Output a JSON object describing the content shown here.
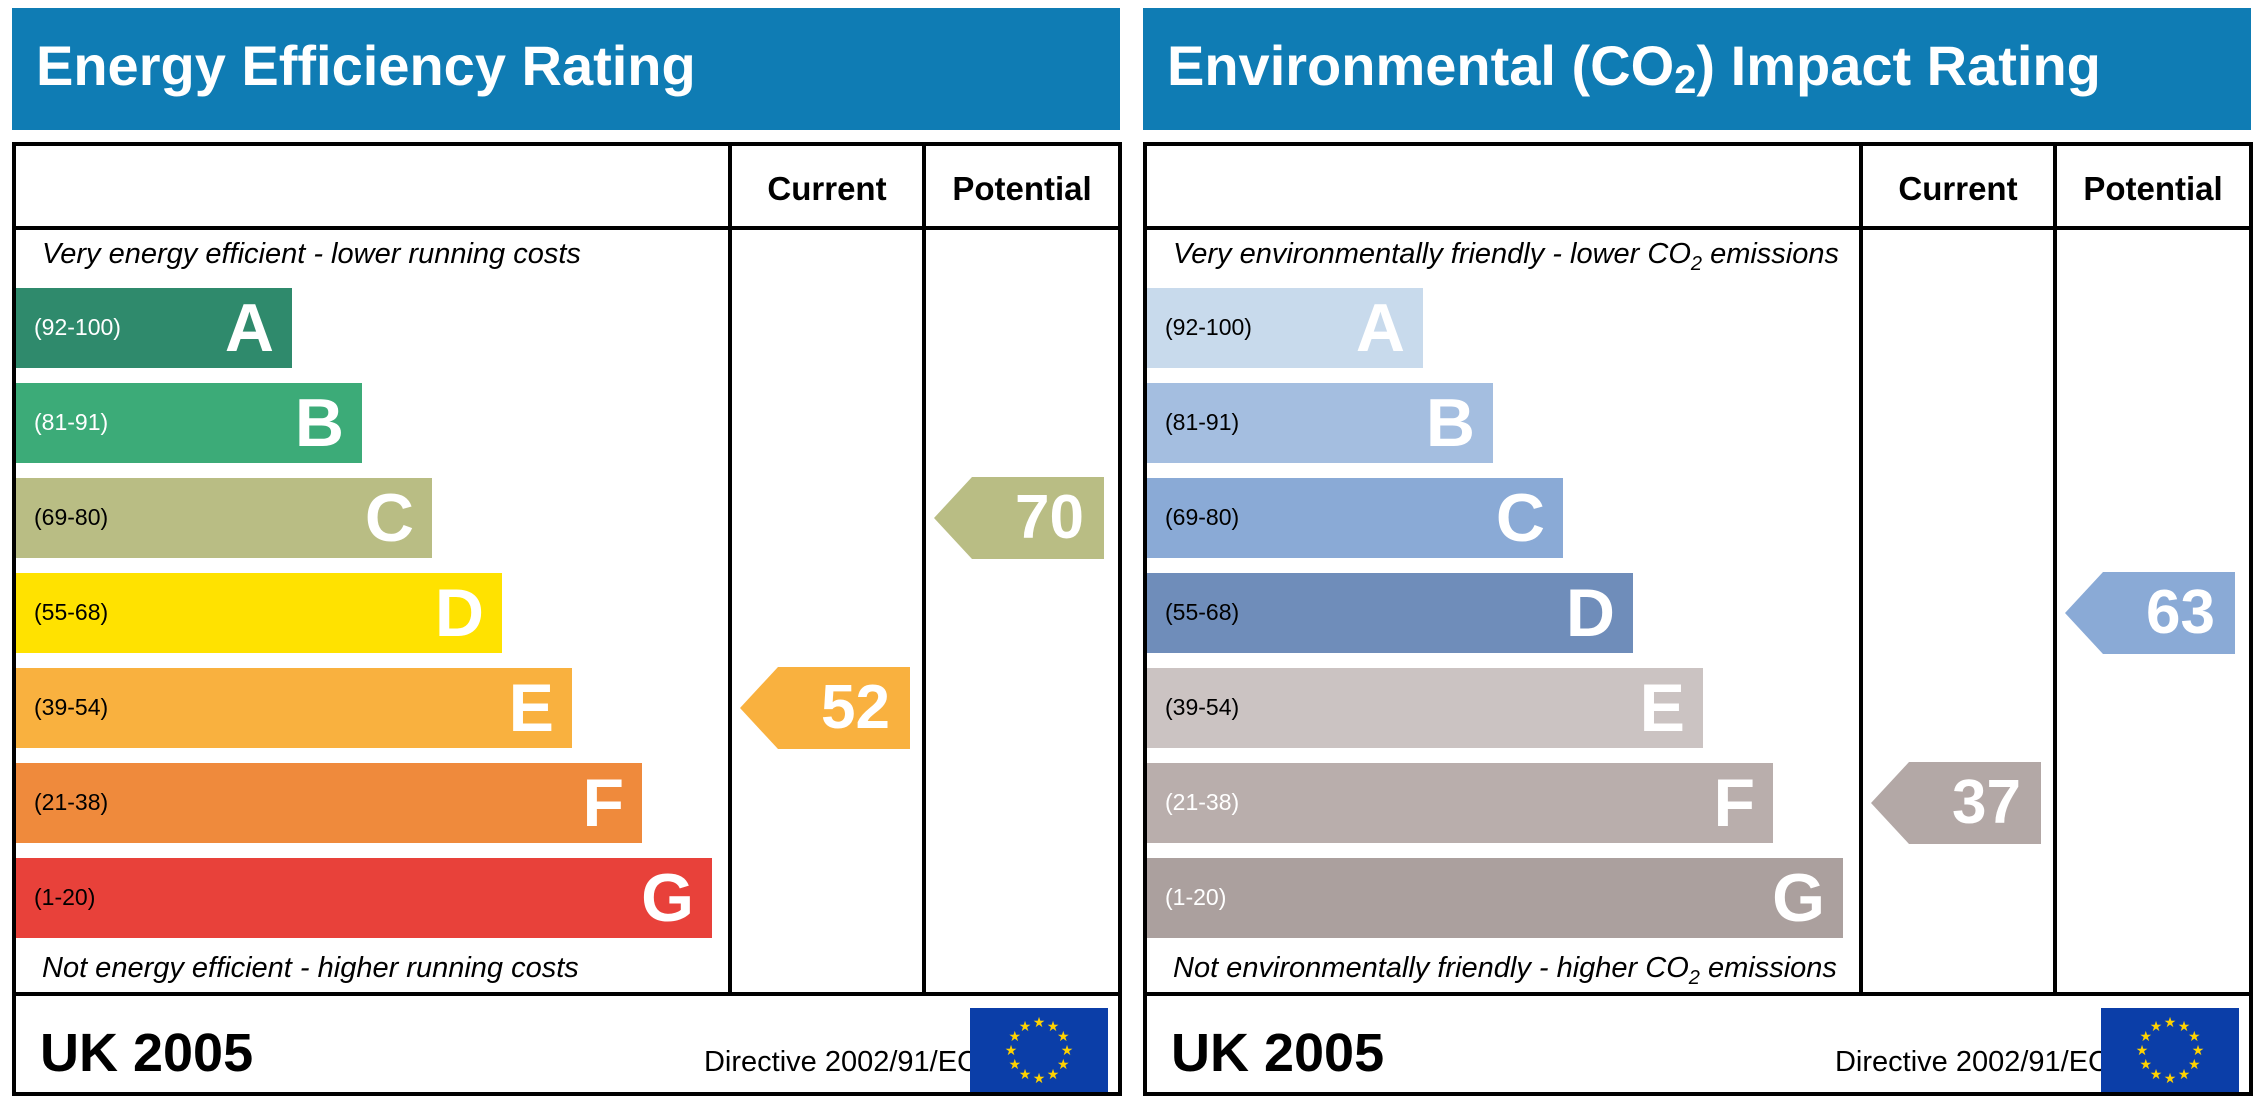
{
  "energy": {
    "title": "Energy Efficiency Rating",
    "col_current": "Current",
    "col_potential": "Potential",
    "top_caption": "Very energy efficient - lower running costs",
    "bottom_caption": "Not energy efficient - higher running costs",
    "bands": [
      {
        "range": "(92-100)",
        "letter": "A",
        "color": "#2f8a6c",
        "range_color": "#ffffff"
      },
      {
        "range": "(81-91)",
        "letter": "B",
        "color": "#3cab78",
        "range_color": "#ffffff"
      },
      {
        "range": "(69-80)",
        "letter": "C",
        "color": "#b9bd84",
        "range_color": "#000000"
      },
      {
        "range": "(55-68)",
        "letter": "D",
        "color": "#ffe200",
        "range_color": "#000000"
      },
      {
        "range": "(39-54)",
        "letter": "E",
        "color": "#f9b13f",
        "range_color": "#000000"
      },
      {
        "range": "(21-38)",
        "letter": "F",
        "color": "#ef8a3c",
        "range_color": "#000000"
      },
      {
        "range": "(1-20)",
        "letter": "G",
        "color": "#e8413a",
        "range_color": "#000000"
      }
    ],
    "current": {
      "value": "52",
      "band": "E",
      "color": "#f9b13f"
    },
    "potential": {
      "value": "70",
      "band": "C",
      "color": "#b9bd84"
    },
    "footer_left": "UK 2005",
    "footer_directive": "Directive 2002/91/EC"
  },
  "environment": {
    "title_prefix": "Environmental (CO",
    "title_sub": "2",
    "title_suffix": ") Impact Rating",
    "col_current": "Current",
    "col_potential": "Potential",
    "top_caption_prefix": "Very environmentally friendly - lower CO",
    "top_caption_sub": "2",
    "top_caption_suffix": " emissions",
    "bottom_caption_prefix": "Not environmentally friendly - higher CO",
    "bottom_caption_sub": "2",
    "bottom_caption_suffix": " emissions",
    "bands": [
      {
        "range": "(92-100)",
        "letter": "A",
        "color": "#c8daec",
        "range_color": "#000000"
      },
      {
        "range": "(81-91)",
        "letter": "B",
        "color": "#a4bee0",
        "range_color": "#000000"
      },
      {
        "range": "(69-80)",
        "letter": "C",
        "color": "#8aaad6",
        "range_color": "#000000"
      },
      {
        "range": "(55-68)",
        "letter": "D",
        "color": "#6f8dba",
        "range_color": "#000000"
      },
      {
        "range": "(39-54)",
        "letter": "E",
        "color": "#cbc3c2",
        "range_color": "#000000"
      },
      {
        "range": "(21-38)",
        "letter": "F",
        "color": "#b9aeac",
        "range_color": "#ffffff"
      },
      {
        "range": "(1-20)",
        "letter": "G",
        "color": "#aba09e",
        "range_color": "#ffffff"
      }
    ],
    "current": {
      "value": "37",
      "band": "F",
      "color": "#b3a8a6"
    },
    "potential": {
      "value": "63",
      "band": "D",
      "color": "#8aaad6"
    },
    "footer_left": "UK 2005",
    "footer_directive": "Directive 2002/91/EC"
  },
  "icons": {
    "eu_flag": "eu-flag-icon"
  },
  "colors": {
    "header": "#0f7cb4",
    "eu_blue": "#0b3ea8",
    "eu_star": "#ffd200"
  }
}
